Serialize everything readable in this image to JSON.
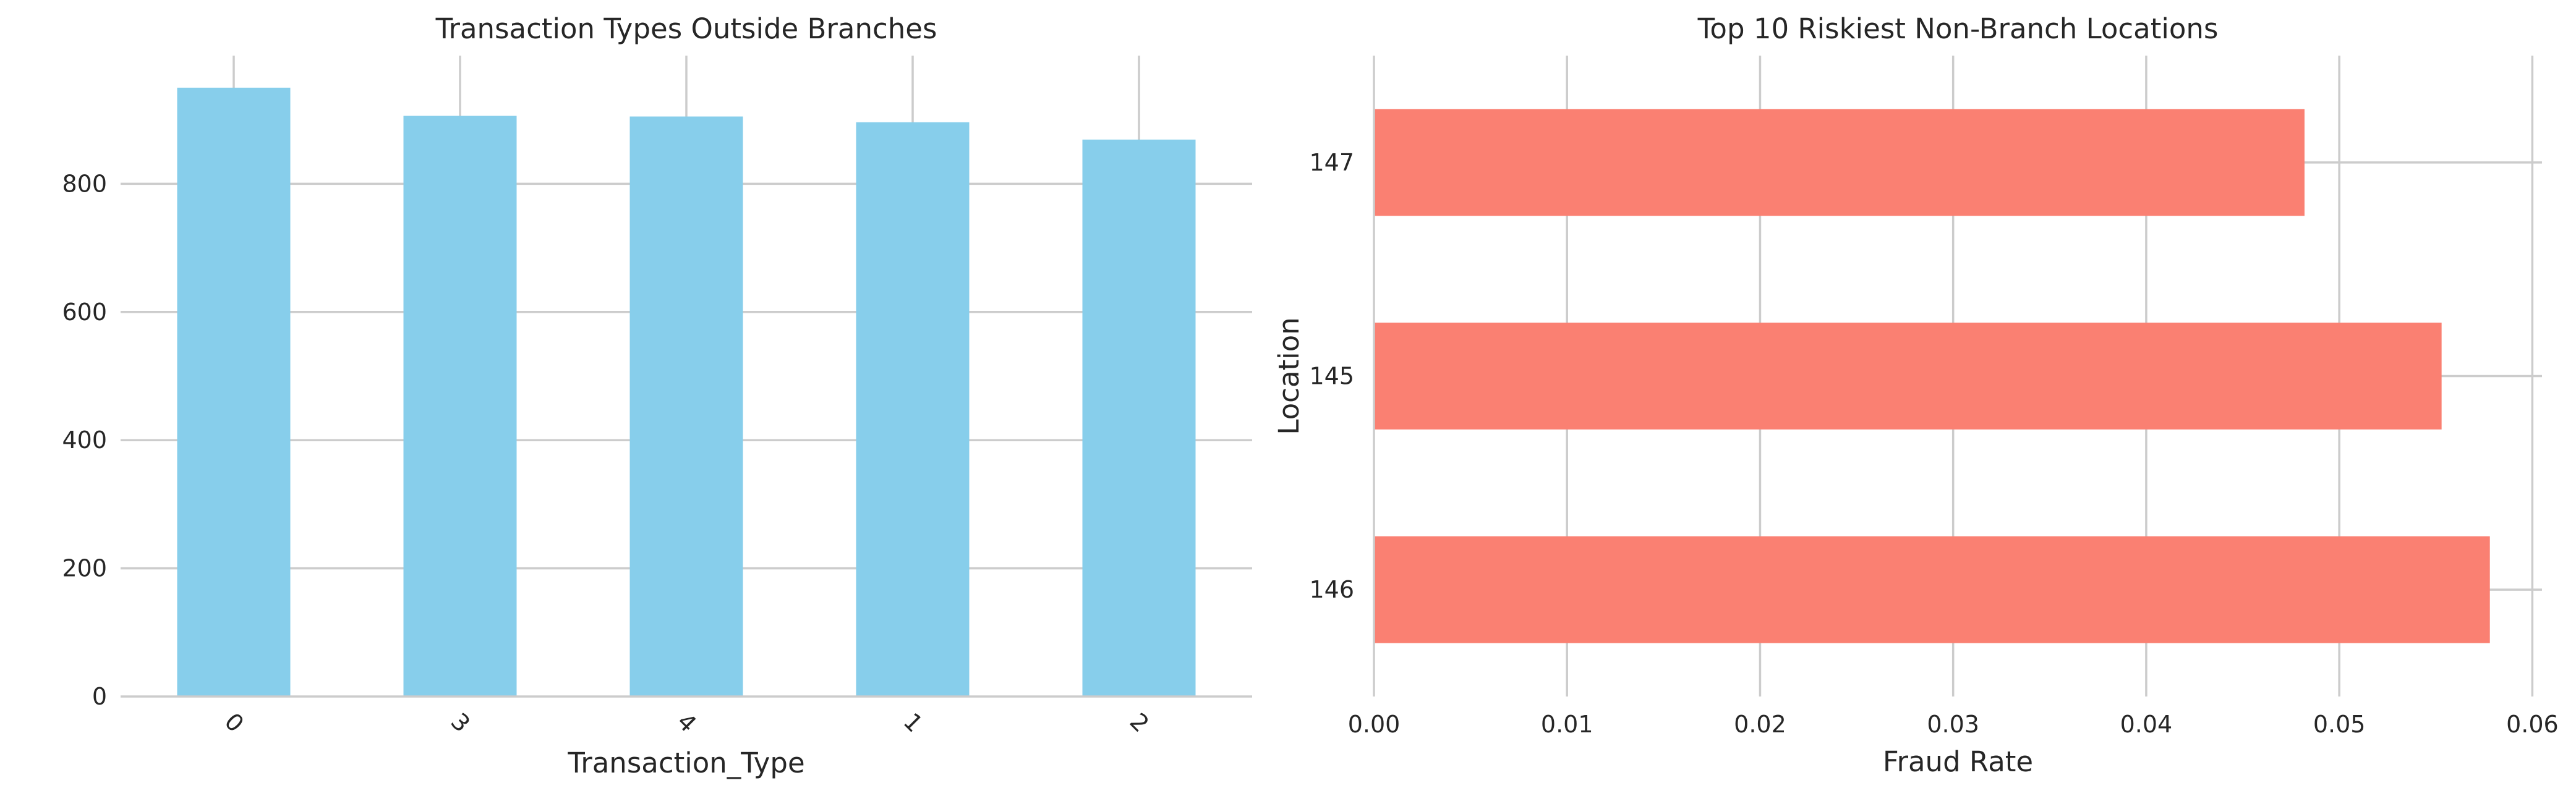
{
  "chart_data": [
    {
      "type": "bar",
      "title": "Transaction Types Outside Branches",
      "xlabel": "Transaction_Type",
      "ylabel": "",
      "categories": [
        "0",
        "3",
        "4",
        "1",
        "2"
      ],
      "values": [
        950,
        906,
        905,
        896,
        869
      ],
      "ylim": [
        0,
        1000
      ],
      "yticks": [
        0,
        200,
        400,
        600,
        800
      ],
      "ytick_labels": [
        "0",
        "200",
        "400",
        "600",
        "800"
      ],
      "xtick_rotation": 45,
      "color": "#87ceeb",
      "grid": true
    },
    {
      "type": "bar",
      "orientation": "horizontal",
      "title": "Top 10 Riskiest Non-Branch Locations",
      "xlabel": "Fraud Rate",
      "ylabel": "Location",
      "categories": [
        "146",
        "145",
        "147"
      ],
      "values": [
        0.0578,
        0.0553,
        0.0482
      ],
      "xlim": [
        0,
        0.0605
      ],
      "xticks": [
        0,
        0.01,
        0.02,
        0.03,
        0.04,
        0.05,
        0.06
      ],
      "xtick_labels": [
        "0.00",
        "0.01",
        "0.02",
        "0.03",
        "0.04",
        "0.05",
        "0.06"
      ],
      "color": "#fa8072",
      "grid": true
    }
  ]
}
